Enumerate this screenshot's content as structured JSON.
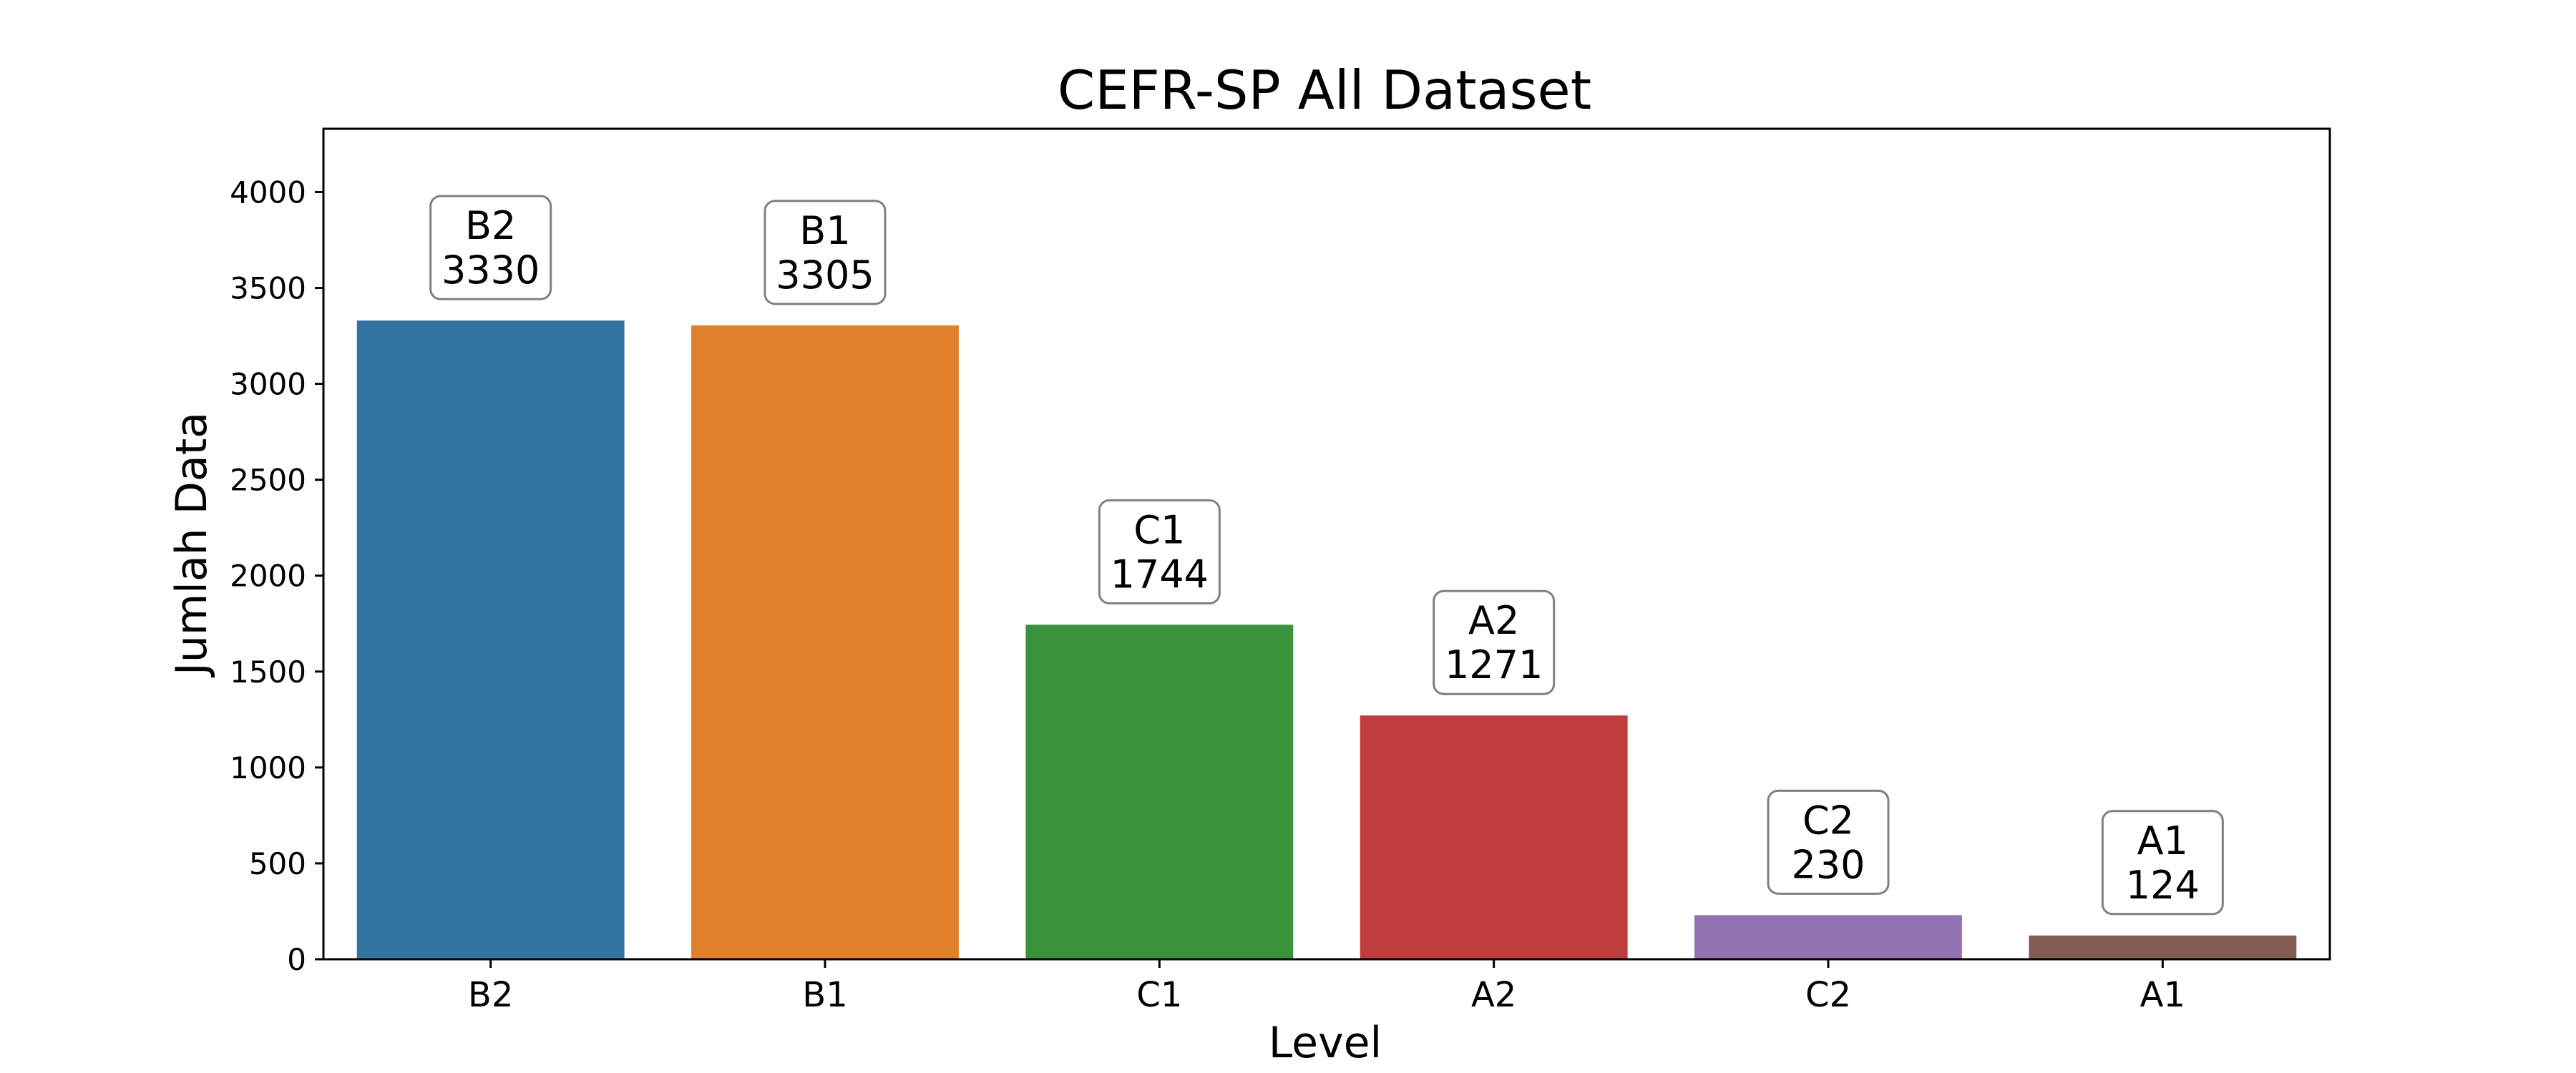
{
  "chart_data": {
    "type": "bar",
    "title": "CEFR-SP All Dataset",
    "xlabel": "Level",
    "ylabel": "Jumlah Data",
    "categories": [
      "B2",
      "B1",
      "C1",
      "A2",
      "C2",
      "A1"
    ],
    "values": [
      3330,
      3305,
      1744,
      1271,
      230,
      124
    ],
    "colors": [
      "#3274a1",
      "#e1812c",
      "#3a923a",
      "#c03d3e",
      "#9372b2",
      "#845b53"
    ],
    "ylim": [
      0,
      4330
    ],
    "yticks": [
      0,
      500,
      1000,
      1500,
      2000,
      2500,
      3000,
      3500,
      4000
    ],
    "grid": false,
    "legend": "none"
  }
}
